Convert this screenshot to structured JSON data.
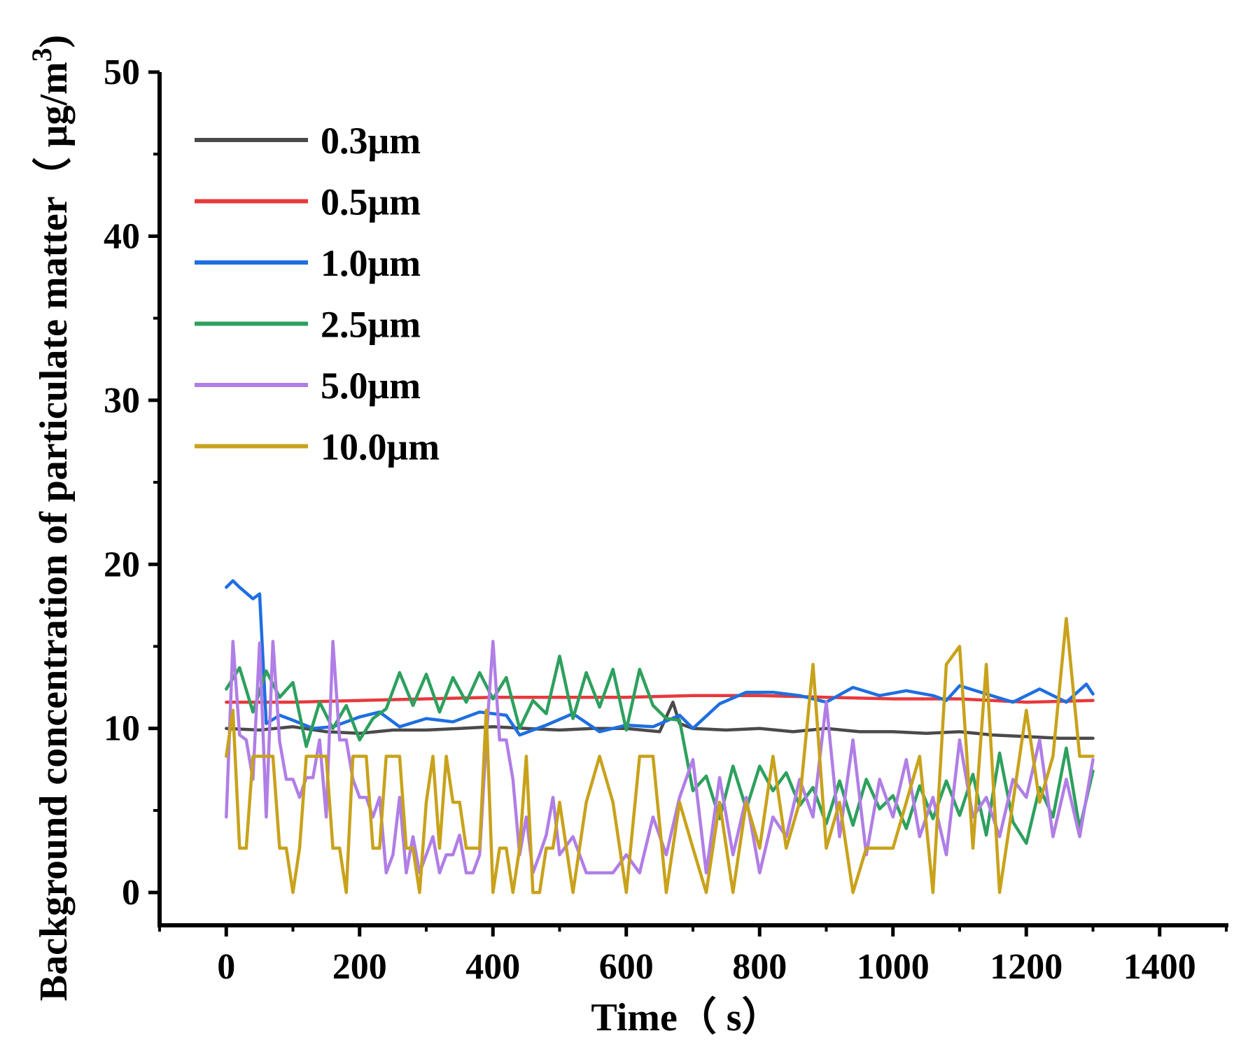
{
  "chart_data": {
    "type": "line",
    "title": "",
    "xlabel": "Time（ s）",
    "ylabel": "Background concentration of particulate matter（ μg/m",
    "ylabel_superscript": "3",
    "ylabel_close": ")",
    "xlim": [
      -100,
      1500
    ],
    "ylim": [
      -2,
      50
    ],
    "x_ticks": [
      0,
      200,
      400,
      600,
      800,
      1000,
      1200,
      1400
    ],
    "x_tick_labels": [
      "0",
      "200",
      "400",
      "600",
      "800",
      "1000",
      "1200",
      "1400"
    ],
    "y_ticks": [
      0,
      10,
      20,
      30,
      40,
      50
    ],
    "y_tick_labels": [
      "0",
      "10",
      "20",
      "30",
      "40",
      "50"
    ],
    "grid": false,
    "legend_position": "top-left",
    "series": [
      {
        "name": "0.3μm",
        "color": "#4a4a4a",
        "x": [
          0,
          50,
          100,
          150,
          200,
          250,
          300,
          350,
          400,
          450,
          500,
          550,
          600,
          650,
          670,
          680,
          700,
          750,
          800,
          850,
          900,
          950,
          1000,
          1050,
          1100,
          1150,
          1200,
          1250,
          1300
        ],
        "y": [
          10.0,
          9.9,
          10.1,
          9.8,
          9.7,
          9.9,
          9.9,
          10.0,
          10.1,
          10.0,
          9.9,
          10.0,
          10.0,
          9.8,
          11.6,
          10.3,
          10.0,
          9.9,
          10.0,
          9.8,
          10.0,
          9.8,
          9.8,
          9.7,
          9.8,
          9.6,
          9.5,
          9.4,
          9.4
        ]
      },
      {
        "name": "0.5μm",
        "color": "#e8393b",
        "x": [
          0,
          100,
          200,
          300,
          400,
          500,
          600,
          700,
          800,
          900,
          1000,
          1100,
          1200,
          1300
        ],
        "y": [
          11.6,
          11.6,
          11.7,
          11.8,
          11.9,
          11.9,
          11.9,
          12.0,
          12.0,
          11.9,
          11.8,
          11.8,
          11.6,
          11.7
        ]
      },
      {
        "name": "1.0μm",
        "color": "#1e6fe0",
        "x": [
          0,
          10,
          20,
          40,
          50,
          60,
          80,
          100,
          130,
          160,
          200,
          230,
          260,
          300,
          340,
          380,
          420,
          440,
          480,
          520,
          560,
          600,
          640,
          680,
          700,
          740,
          780,
          820,
          860,
          900,
          940,
          980,
          1020,
          1060,
          1080,
          1100,
          1140,
          1180,
          1220,
          1260,
          1290,
          1300
        ],
        "y": [
          18.6,
          19.0,
          18.6,
          17.9,
          18.2,
          10.3,
          10.8,
          10.5,
          10.0,
          10.1,
          10.7,
          11.0,
          10.1,
          10.6,
          10.4,
          11.0,
          10.8,
          9.6,
          10.2,
          10.9,
          9.8,
          10.2,
          10.1,
          10.8,
          10.0,
          11.5,
          12.2,
          12.2,
          12.0,
          11.6,
          12.5,
          12.0,
          12.3,
          12.0,
          11.7,
          12.6,
          12.1,
          11.6,
          12.4,
          11.6,
          12.7,
          12.1
        ]
      },
      {
        "name": "2.5μm",
        "color": "#2da05e",
        "x": [
          0,
          20,
          40,
          60,
          80,
          100,
          120,
          140,
          160,
          180,
          200,
          220,
          240,
          260,
          280,
          300,
          320,
          340,
          360,
          380,
          400,
          420,
          440,
          460,
          480,
          500,
          520,
          540,
          560,
          580,
          600,
          620,
          640,
          660,
          680,
          700,
          720,
          740,
          760,
          780,
          800,
          820,
          840,
          860,
          880,
          900,
          920,
          940,
          960,
          980,
          1000,
          1020,
          1040,
          1060,
          1080,
          1100,
          1120,
          1140,
          1160,
          1180,
          1200,
          1220,
          1240,
          1260,
          1280,
          1300
        ],
        "y": [
          12.4,
          13.7,
          11.0,
          13.5,
          11.9,
          12.8,
          8.9,
          11.6,
          10.0,
          11.4,
          9.3,
          10.6,
          11.2,
          13.4,
          11.4,
          13.3,
          11.0,
          13.1,
          11.6,
          13.4,
          11.8,
          13.1,
          10.0,
          11.7,
          10.9,
          14.4,
          10.6,
          13.4,
          11.3,
          13.6,
          9.9,
          13.6,
          11.4,
          10.6,
          10.5,
          6.2,
          7.1,
          4.5,
          7.7,
          5.1,
          7.7,
          6.2,
          7.3,
          5.3,
          6.4,
          4.2,
          6.8,
          4.1,
          6.9,
          5.1,
          5.9,
          3.9,
          6.5,
          4.5,
          6.8,
          4.7,
          7.2,
          3.5,
          8.5,
          4.3,
          3.0,
          6.4,
          4.6,
          8.8,
          3.9,
          7.4
        ]
      },
      {
        "name": "5.0μm",
        "color": "#b07ee6",
        "x": [
          0,
          10,
          20,
          30,
          40,
          50,
          60,
          70,
          80,
          90,
          100,
          110,
          120,
          130,
          140,
          150,
          160,
          170,
          180,
          190,
          200,
          210,
          220,
          230,
          240,
          250,
          260,
          270,
          280,
          290,
          300,
          310,
          320,
          330,
          340,
          350,
          360,
          370,
          380,
          390,
          400,
          410,
          420,
          430,
          440,
          450,
          460,
          470,
          480,
          490,
          500,
          520,
          540,
          560,
          580,
          600,
          620,
          640,
          660,
          680,
          700,
          720,
          740,
          760,
          780,
          800,
          820,
          840,
          860,
          880,
          900,
          920,
          940,
          960,
          980,
          1000,
          1020,
          1040,
          1060,
          1080,
          1100,
          1120,
          1140,
          1160,
          1180,
          1200,
          1220,
          1240,
          1260,
          1280,
          1300
        ],
        "y": [
          4.6,
          15.3,
          9.6,
          9.3,
          6.9,
          15.2,
          4.6,
          15.3,
          9.2,
          6.9,
          6.9,
          5.8,
          7.0,
          7.0,
          9.3,
          4.6,
          15.3,
          9.3,
          9.3,
          6.9,
          5.8,
          5.8,
          4.6,
          5.8,
          1.2,
          2.3,
          5.8,
          1.2,
          3.4,
          1.2,
          2.3,
          3.4,
          1.2,
          2.3,
          2.3,
          3.5,
          1.2,
          1.2,
          2.3,
          9.3,
          15.3,
          9.3,
          9.3,
          6.9,
          2.3,
          4.6,
          1.2,
          2.3,
          3.5,
          5.8,
          2.3,
          3.4,
          1.2,
          1.2,
          1.2,
          2.3,
          1.2,
          4.6,
          2.3,
          5.8,
          8.1,
          1.2,
          7.0,
          2.3,
          5.8,
          1.2,
          4.6,
          3.4,
          6.9,
          4.6,
          11.6,
          3.4,
          9.3,
          2.3,
          6.9,
          4.6,
          8.1,
          3.4,
          5.8,
          2.3,
          9.3,
          4.6,
          5.8,
          3.4,
          6.9,
          5.8,
          9.3,
          3.4,
          6.9,
          3.4,
          8.1
        ]
      },
      {
        "name": "10.0μm",
        "color": "#c8a21b",
        "x": [
          0,
          10,
          20,
          30,
          40,
          50,
          60,
          70,
          80,
          90,
          100,
          110,
          120,
          130,
          140,
          150,
          160,
          170,
          180,
          190,
          200,
          210,
          220,
          230,
          240,
          250,
          260,
          270,
          280,
          290,
          300,
          310,
          320,
          330,
          340,
          350,
          360,
          370,
          380,
          390,
          400,
          410,
          420,
          430,
          440,
          450,
          460,
          470,
          480,
          490,
          500,
          520,
          540,
          560,
          580,
          600,
          620,
          640,
          660,
          680,
          700,
          720,
          740,
          760,
          780,
          800,
          820,
          840,
          860,
          880,
          900,
          920,
          940,
          960,
          980,
          1000,
          1020,
          1040,
          1060,
          1080,
          1100,
          1120,
          1140,
          1160,
          1180,
          1200,
          1220,
          1240,
          1260,
          1280,
          1300
        ],
        "y": [
          8.3,
          11.1,
          2.7,
          2.7,
          8.3,
          8.3,
          8.3,
          8.3,
          2.7,
          2.7,
          0.0,
          2.7,
          8.3,
          8.3,
          8.3,
          8.3,
          2.7,
          2.7,
          0.0,
          8.3,
          8.3,
          8.3,
          2.7,
          2.7,
          8.3,
          8.3,
          8.3,
          2.7,
          2.7,
          0.0,
          5.5,
          8.3,
          2.7,
          8.3,
          5.5,
          5.5,
          2.7,
          2.7,
          2.7,
          11.1,
          0.0,
          2.7,
          2.7,
          0.0,
          2.7,
          8.3,
          0.0,
          0.0,
          2.7,
          2.7,
          5.5,
          0.0,
          5.5,
          8.3,
          5.5,
          0.0,
          8.3,
          8.3,
          0.0,
          5.5,
          2.7,
          0.0,
          5.5,
          0.0,
          5.5,
          2.7,
          8.3,
          2.7,
          5.5,
          13.9,
          2.7,
          5.5,
          0.0,
          2.7,
          2.7,
          2.7,
          5.5,
          8.3,
          0.0,
          13.9,
          15.0,
          2.7,
          13.9,
          0.0,
          5.5,
          11.1,
          5.5,
          8.3,
          16.7,
          8.3,
          8.3
        ]
      }
    ]
  }
}
